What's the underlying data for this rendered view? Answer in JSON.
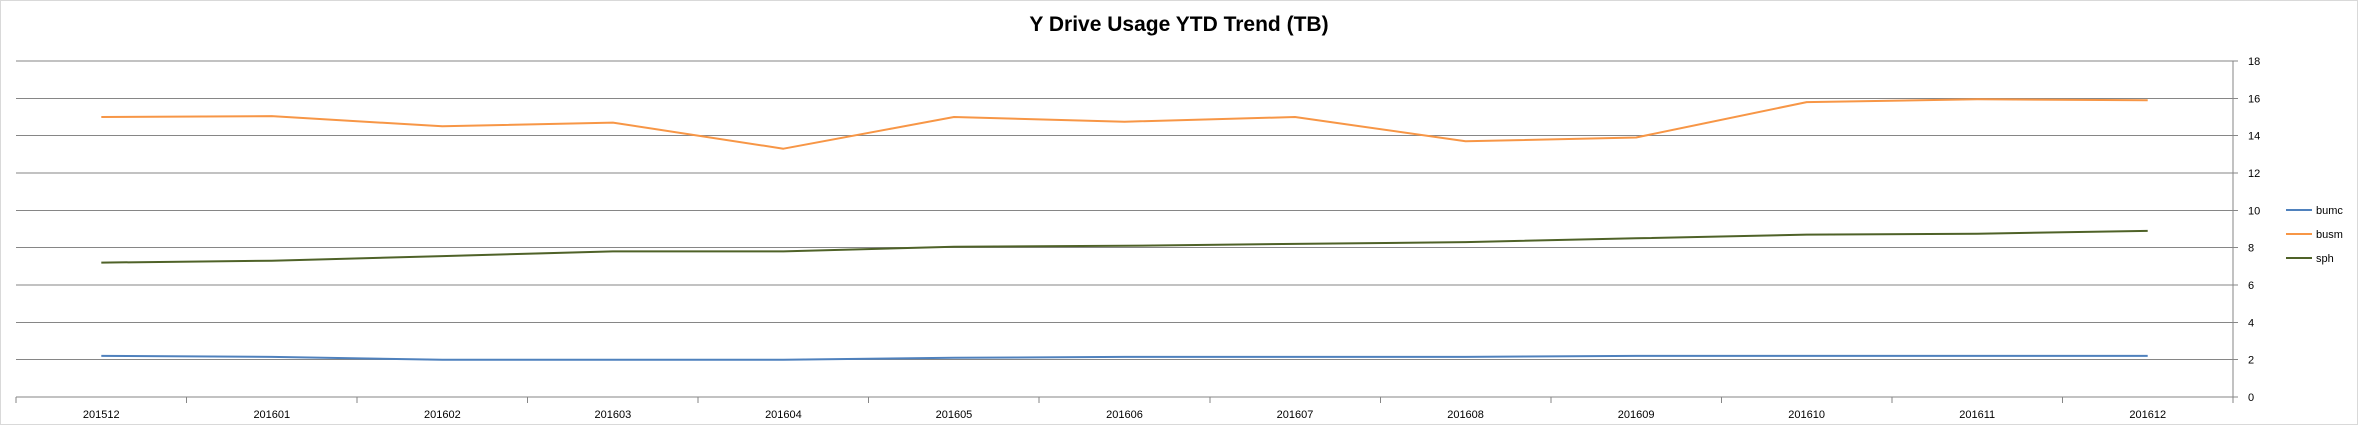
{
  "chart_data": {
    "type": "line",
    "title": "Y Drive Usage YTD Trend (TB)",
    "xlabel": "",
    "ylabel": "",
    "categories": [
      "201512",
      "201601",
      "201602",
      "201603",
      "201604",
      "201605",
      "201606",
      "201607",
      "201608",
      "201609",
      "201610",
      "201611",
      "201612"
    ],
    "ylim": [
      0,
      18
    ],
    "yticks": [
      0,
      2,
      4,
      6,
      8,
      10,
      12,
      14,
      16,
      18
    ],
    "y_axis_side": "right",
    "grid": true,
    "legend_position": "right",
    "series": [
      {
        "name": "bumc",
        "color": "#4f81bd",
        "values": [
          2.2,
          2.15,
          2.0,
          2.0,
          2.0,
          2.1,
          2.15,
          2.15,
          2.15,
          2.2,
          2.2,
          2.2,
          2.2
        ]
      },
      {
        "name": "busm",
        "color": "#f79646",
        "values": [
          15.0,
          15.05,
          14.5,
          14.7,
          13.3,
          15.0,
          14.75,
          15.0,
          13.7,
          13.9,
          15.8,
          15.95,
          15.9
        ]
      },
      {
        "name": "sph",
        "color": "#4f6228",
        "values": [
          7.2,
          7.3,
          7.55,
          7.8,
          7.8,
          8.05,
          8.1,
          8.2,
          8.3,
          8.5,
          8.7,
          8.75,
          8.9
        ]
      }
    ]
  }
}
